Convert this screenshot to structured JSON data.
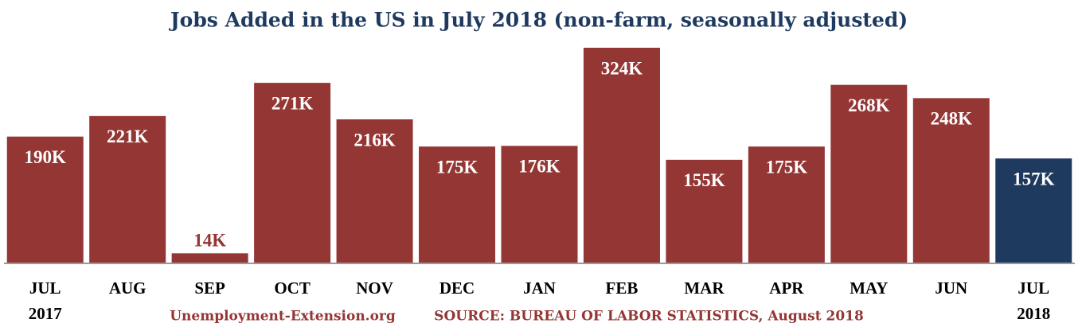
{
  "chart_data": {
    "type": "bar",
    "title": "Jobs Added in the US in July 2018 (non-farm, seasonally adjusted)",
    "categories": [
      "JUL\n2017",
      "AUG",
      "SEP",
      "OCT",
      "NOV",
      "DEC",
      "JAN",
      "FEB",
      "MAR",
      "APR",
      "MAY",
      "JUN",
      "JUL\n2018"
    ],
    "values": [
      190,
      221,
      14,
      271,
      216,
      175,
      176,
      324,
      155,
      175,
      268,
      248,
      157
    ],
    "value_labels": [
      "190K",
      "221K",
      "14K",
      "271K",
      "216K",
      "175K",
      "176K",
      "324K",
      "155K",
      "175K",
      "268K",
      "248K",
      "157K"
    ],
    "colors": [
      "#943634",
      "#943634",
      "#943634",
      "#943634",
      "#943634",
      "#943634",
      "#943634",
      "#943634",
      "#943634",
      "#943634",
      "#943634",
      "#943634",
      "#1f3a5f"
    ],
    "ylim": [
      0,
      330
    ],
    "footer_left": "Unemployment-Extension.org",
    "footer_right": "SOURCE: BUREAU OF LABOR STATISTICS, August 2018"
  }
}
